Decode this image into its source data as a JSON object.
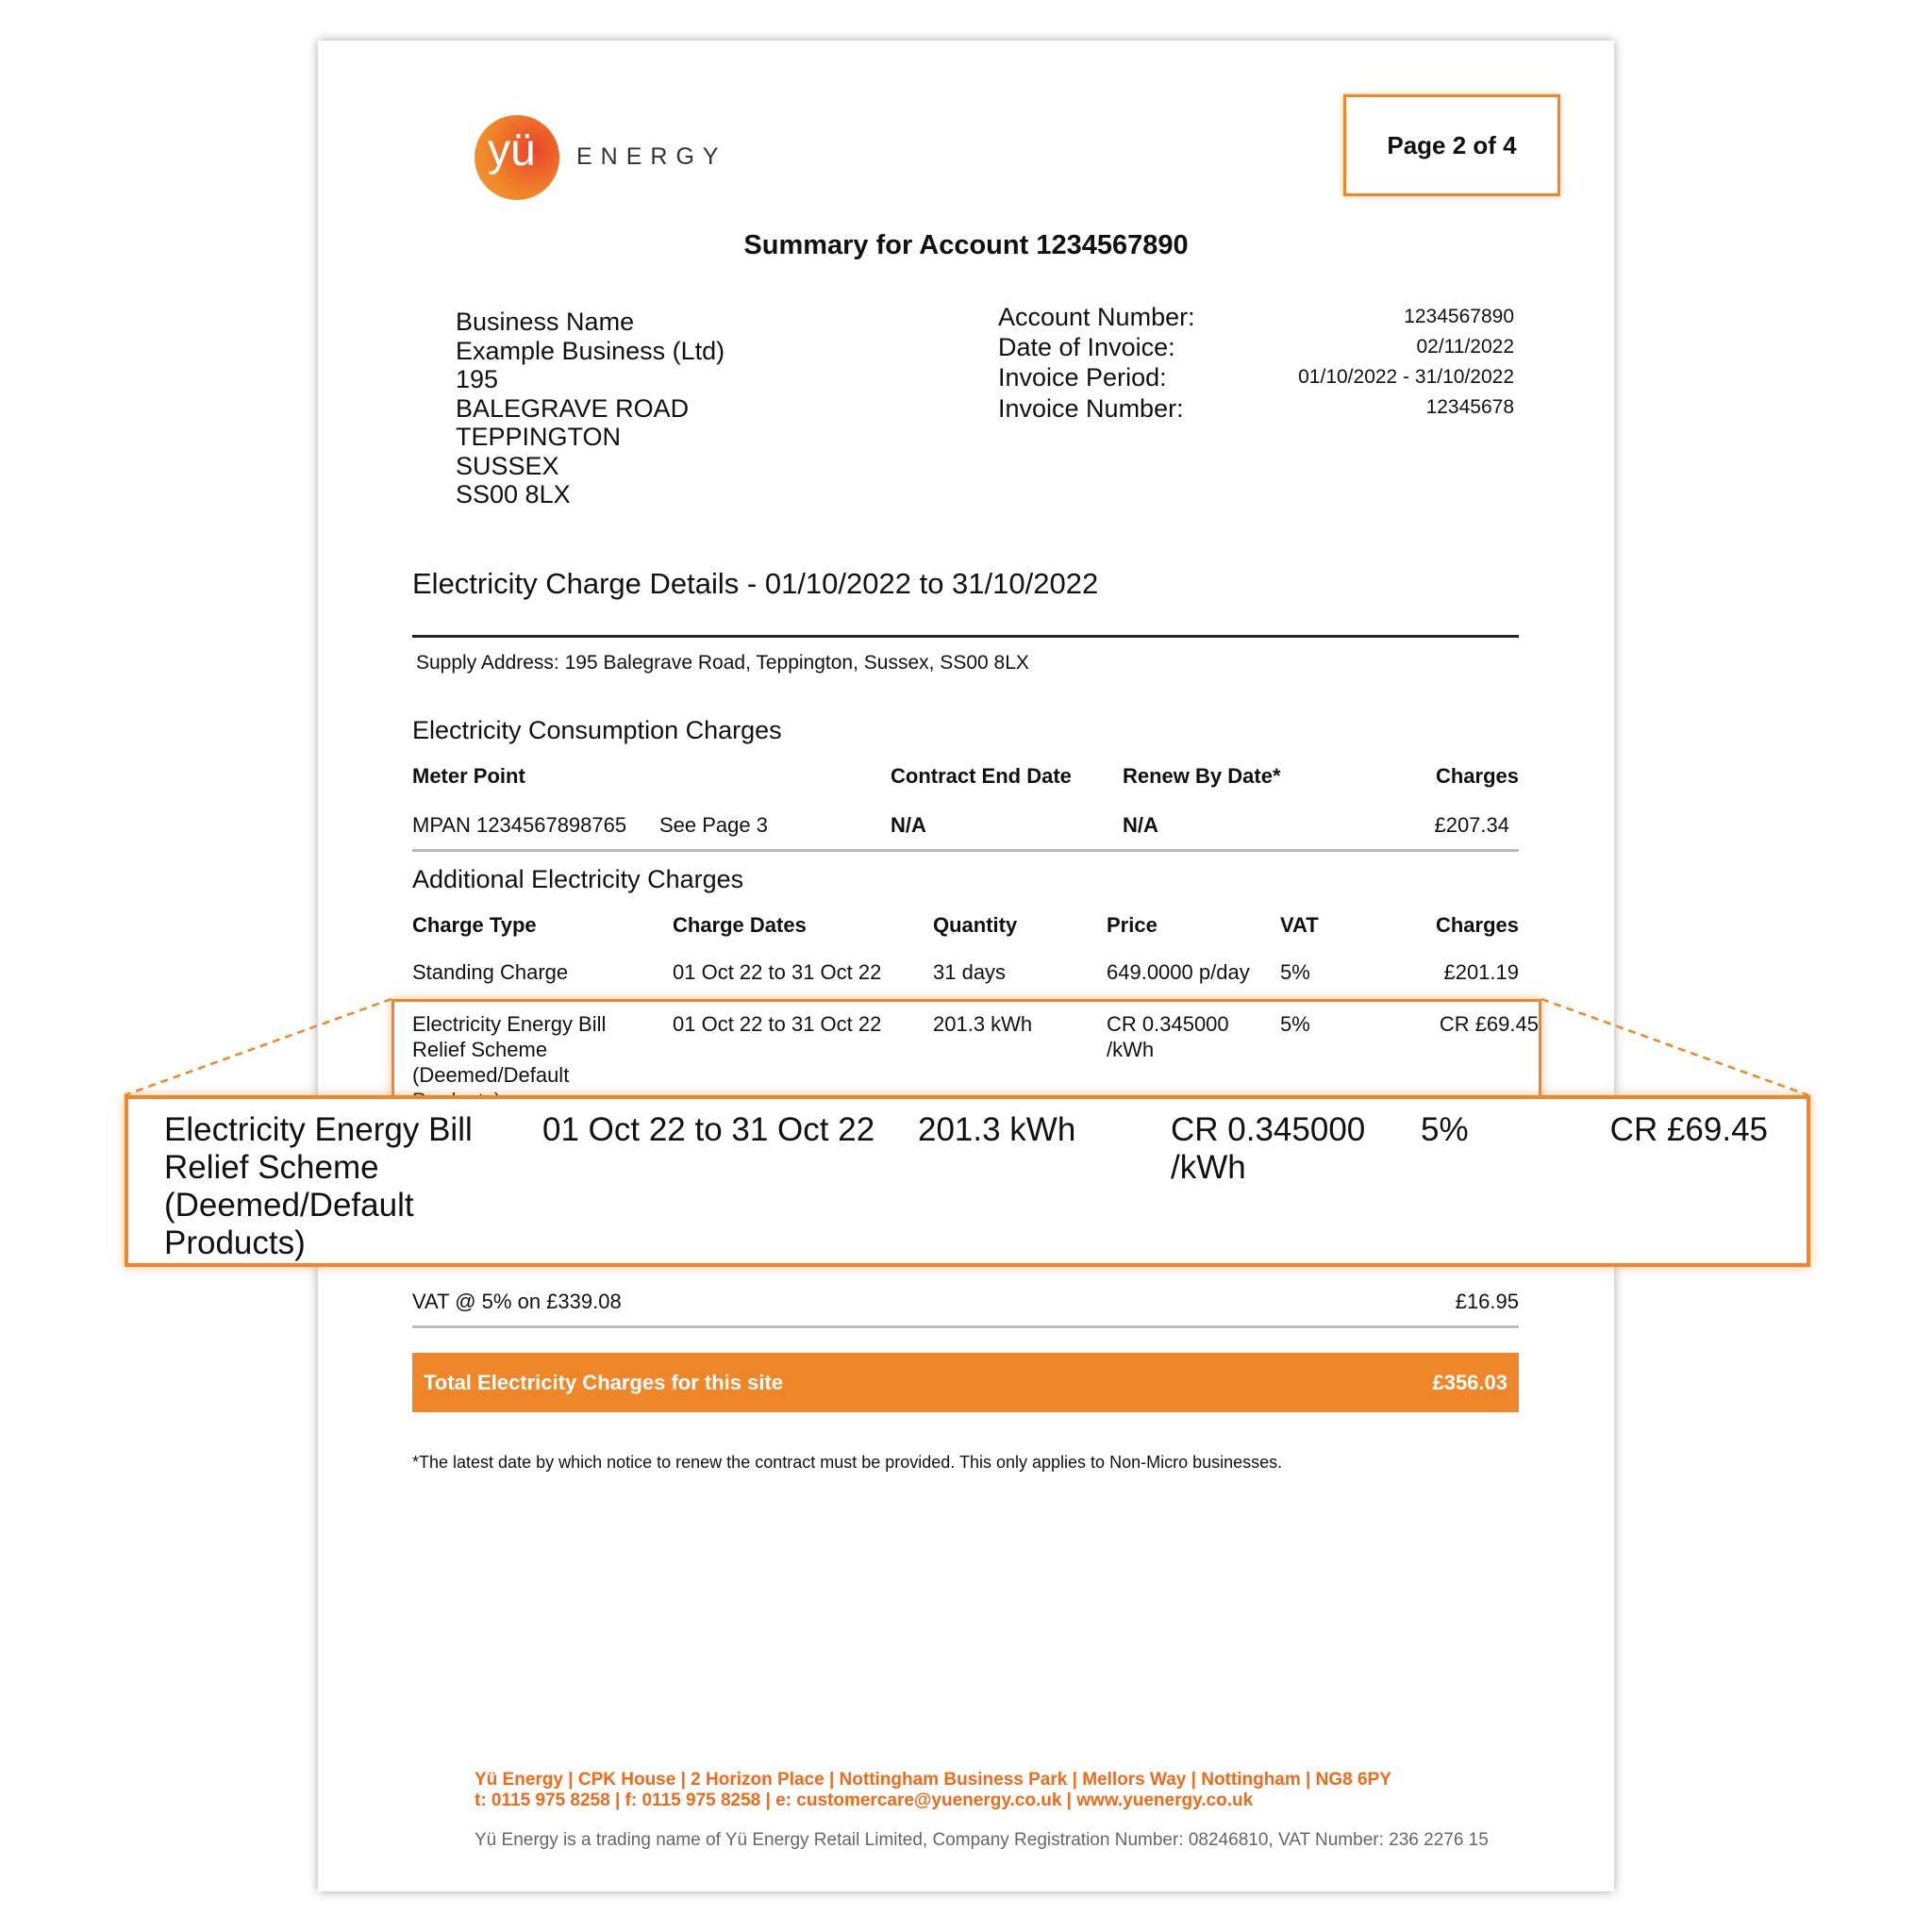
{
  "brand": {
    "logo_mark": "yü",
    "logo_word": "ENERGY",
    "accent": "#f0862a"
  },
  "page_indicator": "Page 2 of 4",
  "title": "Summary for Account 1234567890",
  "customer_address": [
    "Business Name",
    "Example Business (Ltd)",
    "195",
    "BALEGRAVE ROAD",
    "TEPPINGTON",
    "SUSSEX",
    "SS00 8LX"
  ],
  "invoice_info": [
    {
      "label": "Account Number:",
      "value": "1234567890"
    },
    {
      "label": "Date of Invoice:",
      "value": "02/11/2022"
    },
    {
      "label": "Invoice Period:",
      "value": "01/10/2022 - 31/10/2022"
    },
    {
      "label": "Invoice Number:",
      "value": "12345678"
    }
  ],
  "section_title": "Electricity Charge Details - 01/10/2022 to 31/10/2022",
  "supply_address": "Supply Address: 195 Balegrave Road, Teppington, Sussex, SS00 8LX",
  "consumption": {
    "heading": "Electricity Consumption Charges",
    "columns": [
      "Meter Point",
      "Contract End Date",
      "Renew By Date*",
      "Charges"
    ],
    "row": {
      "meter": "MPAN 1234567898765",
      "see": "See Page 3",
      "contract_end": "N/A",
      "renew_by": "N/A",
      "charges": "£207.34"
    }
  },
  "additional": {
    "heading": "Additional Electricity Charges",
    "columns": [
      "Charge Type",
      "Charge Dates",
      "Quantity",
      "Price",
      "VAT",
      "Charges"
    ],
    "rows": [
      {
        "type": [
          "Standing Charge"
        ],
        "dates": "01 Oct 22 to 31 Oct 22",
        "quantity": "31 days",
        "price": [
          "649.0000 p/day"
        ],
        "vat": "5%",
        "charges": "£201.19"
      },
      {
        "type": [
          "Electricity Energy Bill",
          "Relief Scheme",
          "(Deemed/Default",
          "Products)"
        ],
        "dates": "01 Oct 22 to 31 Oct 22",
        "quantity": "201.3 kWh",
        "price": [
          "CR 0.345000",
          "/kWh"
        ],
        "vat": "5%",
        "charges": "CR £69.45"
      }
    ]
  },
  "vat_line": {
    "label": "VAT @ 5% on £339.08",
    "value": "£16.95"
  },
  "total": {
    "label": "Total Electricity Charges for this site",
    "value": "£356.03"
  },
  "footnote": "*The latest date by which notice to renew the contract must be provided. This only applies to Non-Micro businesses.",
  "footer": {
    "line1": "Yü Energy | CPK House | 2 Horizon Place | Nottingham Business Park | Mellors Way | Nottingham | NG8 6PY",
    "line2": "t: 0115 975 8258 | f: 0115 975 8258 | e: customercare@yuenergy.co.uk | www.yuenergy.co.uk",
    "legal": "Yü Energy is a trading name of Yü Energy Retail Limited, Company Registration Number: 08246810, VAT Number: 236 2276 15"
  }
}
